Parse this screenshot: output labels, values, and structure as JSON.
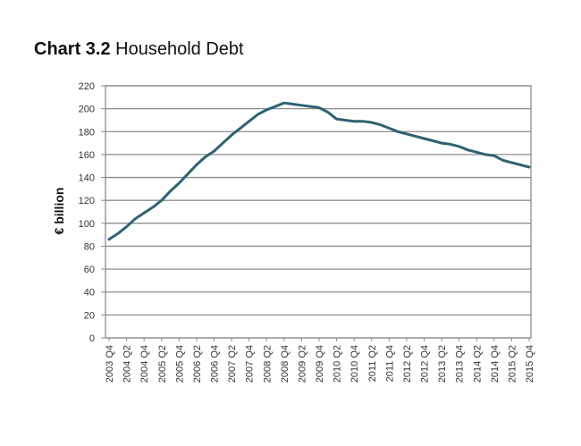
{
  "title": {
    "prefix": "Chart 3.2",
    "text": "Household Debt"
  },
  "chart_data": {
    "type": "line",
    "title": "Chart 3.2 Household Debt",
    "xlabel": "",
    "ylabel": "€ billion",
    "ylim": [
      0,
      220
    ],
    "yticks": [
      0,
      20,
      40,
      60,
      80,
      100,
      120,
      140,
      160,
      180,
      200,
      220
    ],
    "grid": true,
    "legend": "none",
    "x_tick_labels": [
      "2003 Q4",
      "2004 Q2",
      "2004 Q4",
      "2005 Q2",
      "2005 Q4",
      "2006 Q2",
      "2006 Q4",
      "2007 Q2",
      "2007 Q4",
      "2008 Q2",
      "2008 Q4",
      "2009 Q2",
      "2009 Q4",
      "2010 Q2",
      "2010 Q4",
      "2011 Q2",
      "2011 Q4",
      "2012 Q2",
      "2012 Q4",
      "2013 Q2",
      "2013 Q4",
      "2014 Q2",
      "2014 Q4",
      "2015 Q2",
      "2015 Q4"
    ],
    "x": [
      "2003 Q4",
      "2004 Q1",
      "2004 Q2",
      "2004 Q3",
      "2004 Q4",
      "2005 Q1",
      "2005 Q2",
      "2005 Q3",
      "2005 Q4",
      "2006 Q1",
      "2006 Q2",
      "2006 Q3",
      "2006 Q4",
      "2007 Q1",
      "2007 Q2",
      "2007 Q3",
      "2007 Q4",
      "2008 Q1",
      "2008 Q2",
      "2008 Q3",
      "2008 Q4",
      "2009 Q1",
      "2009 Q2",
      "2009 Q3",
      "2009 Q4",
      "2010 Q1",
      "2010 Q2",
      "2010 Q3",
      "2010 Q4",
      "2011 Q1",
      "2011 Q2",
      "2011 Q3",
      "2011 Q4",
      "2012 Q1",
      "2012 Q2",
      "2012 Q3",
      "2012 Q4",
      "2013 Q1",
      "2013 Q2",
      "2013 Q3",
      "2013 Q4",
      "2014 Q1",
      "2014 Q2",
      "2014 Q3",
      "2014 Q4",
      "2015 Q1",
      "2015 Q2",
      "2015 Q3",
      "2015 Q4"
    ],
    "series": [
      {
        "name": "Household Debt",
        "color": "#2e6272",
        "values": [
          86,
          91,
          97,
          104,
          109,
          114,
          120,
          128,
          135,
          143,
          151,
          158,
          163,
          170,
          177,
          183,
          189,
          195,
          199,
          202,
          205,
          204,
          203,
          202,
          201,
          197,
          191,
          190,
          189,
          189,
          188,
          186,
          183,
          180,
          178,
          176,
          174,
          172,
          170,
          169,
          167,
          164,
          162,
          160,
          159,
          155,
          153,
          151,
          149
        ]
      }
    ]
  },
  "colors": {
    "line": "#2e6272",
    "grid": "#8c8c8c",
    "frame": "#8c8c8c"
  }
}
